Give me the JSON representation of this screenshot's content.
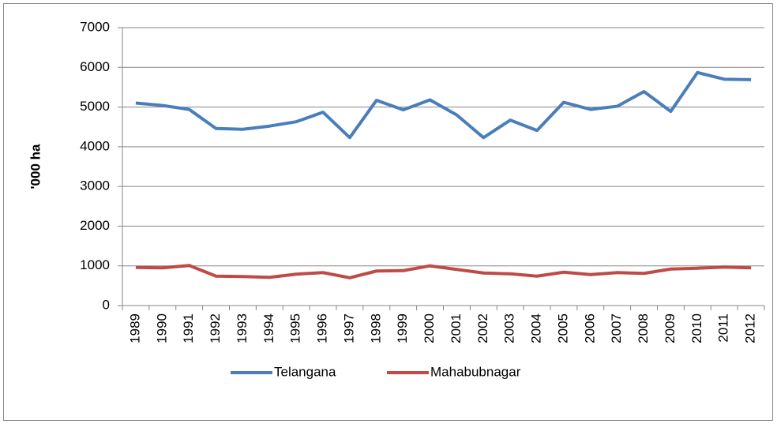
{
  "chart_data": {
    "type": "line",
    "y_label": "'000 ha",
    "categories": [
      "1989",
      "1990",
      "1991",
      "1992",
      "1993",
      "1994",
      "1995",
      "1996",
      "1997",
      "1998",
      "1999",
      "2000",
      "2001",
      "2002",
      "2003",
      "2004",
      "2005",
      "2006",
      "2007",
      "2008",
      "2009",
      "2010",
      "2011",
      "2012"
    ],
    "series": [
      {
        "name": "Telangana",
        "color": "#4a7ebb",
        "values": [
          5100,
          5040,
          4940,
          4460,
          4440,
          4520,
          4630,
          4870,
          4230,
          5170,
          4930,
          5180,
          4800,
          4230,
          4670,
          4410,
          5120,
          4940,
          5020,
          5390,
          4890,
          5870,
          5700,
          5690
        ]
      },
      {
        "name": "Mahabubnagar",
        "color": "#be4b48",
        "values": [
          960,
          950,
          1010,
          740,
          730,
          710,
          790,
          830,
          700,
          870,
          880,
          1000,
          910,
          820,
          800,
          740,
          840,
          780,
          830,
          810,
          920,
          940,
          970,
          950
        ]
      }
    ],
    "ylim": [
      0,
      7000
    ],
    "yticks": [
      0,
      1000,
      2000,
      3000,
      4000,
      5000,
      6000,
      7000
    ],
    "grid": true,
    "legend": "bottom"
  }
}
